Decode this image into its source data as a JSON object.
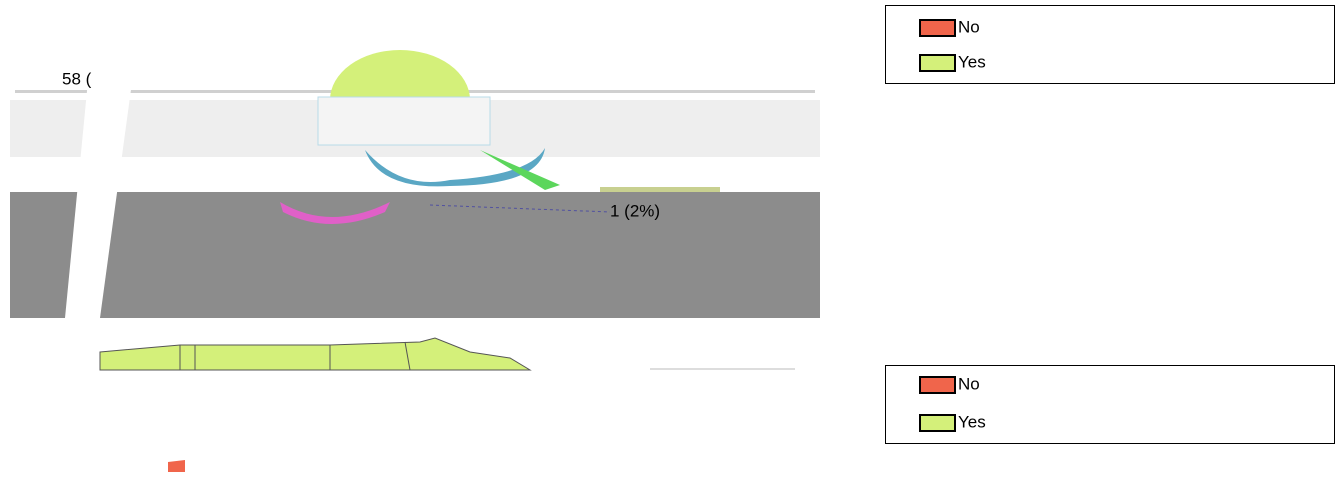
{
  "legends": [
    {
      "items": [
        {
          "label": "No",
          "color": "#f0654b"
        },
        {
          "label": "Yes",
          "color": "#d4f07a"
        }
      ]
    },
    {
      "items": [
        {
          "label": "No",
          "color": "#f0654b"
        },
        {
          "label": "Yes",
          "color": "#d4f07a"
        }
      ]
    }
  ],
  "labels": [
    "58 (",
    "1 (2%)"
  ]
}
